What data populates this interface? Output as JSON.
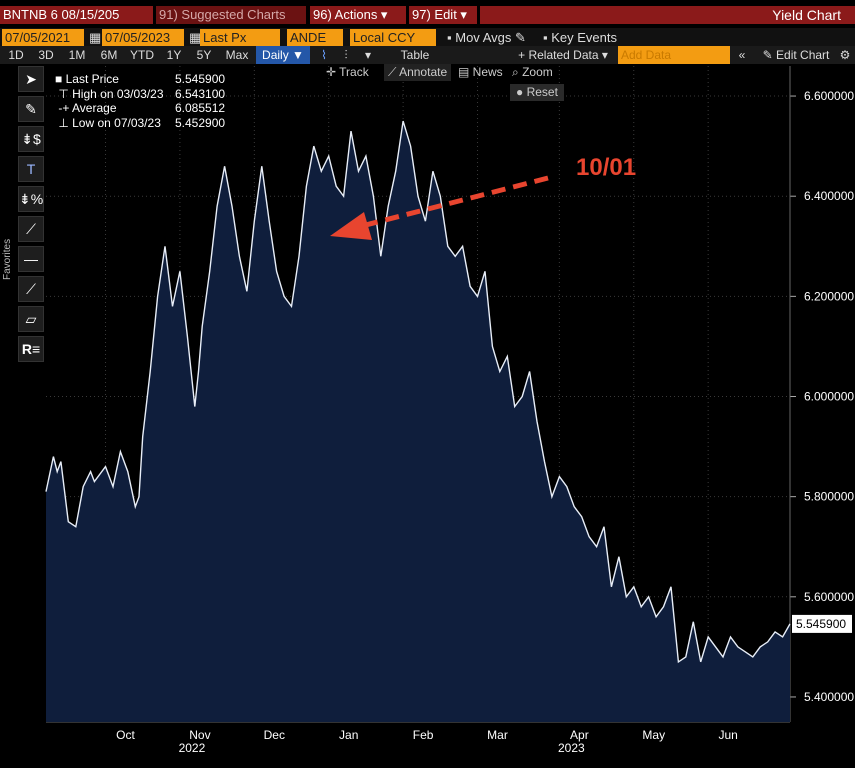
{
  "header": {
    "ticker": "BNTNB 6 08/15/205",
    "suggested": "91) Suggested Charts",
    "actions": "96) Actions ▾",
    "edit": "97) Edit ▾",
    "title": "Yield Chart"
  },
  "controls": {
    "start_date": "07/05/2021",
    "end_date": "07/05/2023",
    "field": "Last Px",
    "source": "ANDE",
    "currency": "Local CCY",
    "mov_avgs": "Mov Avgs",
    "key_events": "Key Events"
  },
  "tabs": [
    "1D",
    "3D",
    "1M",
    "6M",
    "YTD",
    "1Y",
    "5Y",
    "Max",
    "Daily ▼"
  ],
  "toolbar": {
    "table": "Table",
    "related": "+ Related Data ▾",
    "add_data_placeholder": "Add Data",
    "edit_chart": "Edit Chart",
    "track": "Track",
    "annotate": "Annotate",
    "news": "News",
    "zoom": "Zoom",
    "reset": "Reset"
  },
  "sidebar": {
    "favorites": "Favorites"
  },
  "legend": [
    {
      "label": "Last Price",
      "value": "5.545900"
    },
    {
      "label": "High on 03/03/23",
      "value": "6.543100"
    },
    {
      "label": "Average",
      "value": "6.085512"
    },
    {
      "label": "Low on 07/03/23",
      "value": "5.452900"
    }
  ],
  "annotation": "10/01",
  "last_value_tag": "5.545900",
  "colors": {
    "line": "#e8eef8",
    "fill": "#0f1e3c",
    "arrow": "#e8452f",
    "grid": "#3a3a3a"
  },
  "chart_data": {
    "type": "area",
    "ylim": [
      5.35,
      6.66
    ],
    "yticks": [
      "6.600000",
      "6.400000",
      "6.200000",
      "6.000000",
      "5.800000",
      "5.600000",
      "5.400000"
    ],
    "ytick_values": [
      6.6,
      6.4,
      6.2,
      6.0,
      5.8,
      5.6,
      5.4
    ],
    "xticks": [
      "Oct",
      "Nov",
      "Dec",
      "Jan",
      "Feb",
      "Mar",
      "Apr",
      "May",
      "Jun"
    ],
    "xtick_t": [
      0.08,
      0.18,
      0.28,
      0.38,
      0.48,
      0.58,
      0.69,
      0.79,
      0.89
    ],
    "year_labels": [
      "2022",
      "2023"
    ],
    "year_t": [
      0.18,
      0.69
    ],
    "series": [
      {
        "t": [
          0,
          0.01,
          0.015,
          0.02,
          0.03,
          0.04,
          0.05,
          0.06,
          0.065,
          0.08,
          0.09,
          0.1,
          0.11,
          0.12,
          0.125,
          0.13,
          0.14,
          0.15,
          0.16,
          0.17,
          0.18,
          0.19,
          0.2,
          0.205,
          0.21,
          0.22,
          0.23,
          0.24,
          0.25,
          0.26,
          0.27,
          0.28,
          0.29,
          0.3,
          0.31,
          0.32,
          0.33,
          0.34,
          0.35,
          0.36,
          0.37,
          0.38,
          0.39,
          0.4,
          0.41,
          0.42,
          0.43,
          0.44,
          0.45,
          0.46,
          0.47,
          0.48,
          0.49,
          0.5,
          0.51,
          0.52,
          0.53,
          0.54,
          0.55,
          0.56,
          0.57,
          0.58,
          0.59,
          0.6,
          0.61,
          0.62,
          0.63,
          0.64,
          0.65,
          0.66,
          0.67,
          0.68,
          0.69,
          0.7,
          0.71,
          0.72,
          0.73,
          0.74,
          0.75,
          0.76,
          0.77,
          0.78,
          0.79,
          0.8,
          0.81,
          0.82,
          0.83,
          0.84,
          0.85,
          0.86,
          0.87,
          0.88,
          0.89,
          0.9,
          0.91,
          0.92,
          0.93,
          0.94,
          0.95,
          0.96,
          0.97,
          0.98,
          0.99,
          1.0
        ],
        "values": [
          5.81,
          5.88,
          5.85,
          5.87,
          5.75,
          5.74,
          5.82,
          5.85,
          5.83,
          5.86,
          5.82,
          5.89,
          5.85,
          5.78,
          5.8,
          5.92,
          6.05,
          6.2,
          6.3,
          6.18,
          6.25,
          6.12,
          5.98,
          6.05,
          6.14,
          6.25,
          6.38,
          6.46,
          6.38,
          6.28,
          6.21,
          6.35,
          6.46,
          6.35,
          6.25,
          6.2,
          6.18,
          6.28,
          6.42,
          6.5,
          6.45,
          6.48,
          6.42,
          6.4,
          6.53,
          6.45,
          6.48,
          6.4,
          6.28,
          6.38,
          6.45,
          6.55,
          6.5,
          6.4,
          6.35,
          6.45,
          6.4,
          6.3,
          6.28,
          6.3,
          6.22,
          6.2,
          6.25,
          6.1,
          6.05,
          6.08,
          5.98,
          6.0,
          6.05,
          5.95,
          5.87,
          5.8,
          5.84,
          5.82,
          5.78,
          5.76,
          5.72,
          5.7,
          5.74,
          5.62,
          5.68,
          5.6,
          5.62,
          5.58,
          5.6,
          5.56,
          5.58,
          5.62,
          5.47,
          5.48,
          5.55,
          5.47,
          5.52,
          5.5,
          5.48,
          5.52,
          5.5,
          5.49,
          5.48,
          5.5,
          5.51,
          5.53,
          5.52,
          5.5459
        ]
      }
    ]
  }
}
